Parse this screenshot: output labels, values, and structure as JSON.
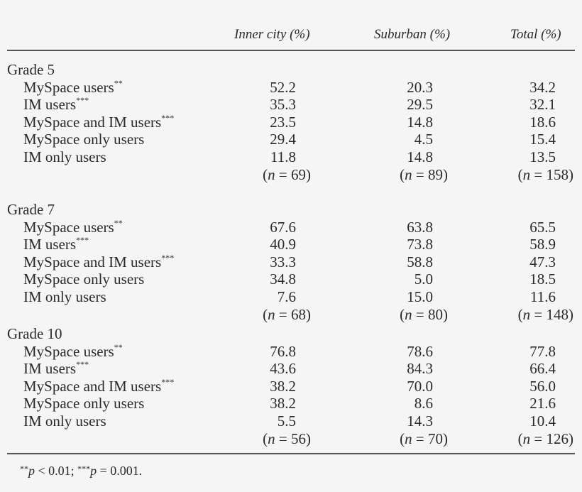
{
  "table": {
    "columns": [
      "",
      "Inner city (%)",
      "Suburban (%)",
      "Total (%)"
    ],
    "groups": [
      {
        "title": "Grade 5",
        "rows": [
          {
            "label": "MySpace users",
            "sig": "**",
            "values": [
              "52.2",
              "20.3",
              "34.2"
            ]
          },
          {
            "label": "IM users",
            "sig": "***",
            "values": [
              "35.3",
              "29.5",
              "32.1"
            ]
          },
          {
            "label": "MySpace and IM users",
            "sig": "***",
            "values": [
              "23.5",
              "14.8",
              "18.6"
            ]
          },
          {
            "label": "MySpace only users",
            "sig": "",
            "values": [
              "29.4",
              "4.5",
              "15.4"
            ]
          },
          {
            "label": "IM only users",
            "sig": "",
            "values": [
              "11.8",
              "14.8",
              "13.5"
            ]
          }
        ],
        "n": [
          "69",
          "89",
          "158"
        ]
      },
      {
        "title": "Grade 7",
        "rows": [
          {
            "label": "MySpace users",
            "sig": "**",
            "values": [
              "67.6",
              "63.8",
              "65.5"
            ]
          },
          {
            "label": "IM users",
            "sig": "***",
            "values": [
              "40.9",
              "73.8",
              "58.9"
            ]
          },
          {
            "label": "MySpace and IM users",
            "sig": "***",
            "values": [
              "33.3",
              "58.8",
              "47.3"
            ]
          },
          {
            "label": "MySpace only users",
            "sig": "",
            "values": [
              "34.8",
              "5.0",
              "18.5"
            ]
          },
          {
            "label": "IM only users",
            "sig": "",
            "values": [
              "7.6",
              "15.0",
              "11.6"
            ]
          }
        ],
        "n": [
          "68",
          "80",
          "148"
        ]
      },
      {
        "title": "Grade 10",
        "rows": [
          {
            "label": "MySpace users",
            "sig": "**",
            "values": [
              "76.8",
              "78.6",
              "77.8"
            ]
          },
          {
            "label": "IM users",
            "sig": "***",
            "values": [
              "43.6",
              "84.3",
              "66.4"
            ]
          },
          {
            "label": "MySpace and IM users",
            "sig": "***",
            "values": [
              "38.2",
              "70.0",
              "56.0"
            ]
          },
          {
            "label": "MySpace only users",
            "sig": "",
            "values": [
              "38.2",
              "8.6",
              "21.6"
            ]
          },
          {
            "label": "IM only users",
            "sig": "",
            "values": [
              "5.5",
              "14.3",
              "10.4"
            ]
          }
        ],
        "n": [
          "56",
          "70",
          "126"
        ]
      }
    ],
    "n_prefix": "n",
    "footnote": {
      "sig1": "**",
      "p1": "p",
      "text1": " < 0.01; ",
      "sig2": "***",
      "p2": "p",
      "text2": " = 0.001."
    }
  }
}
